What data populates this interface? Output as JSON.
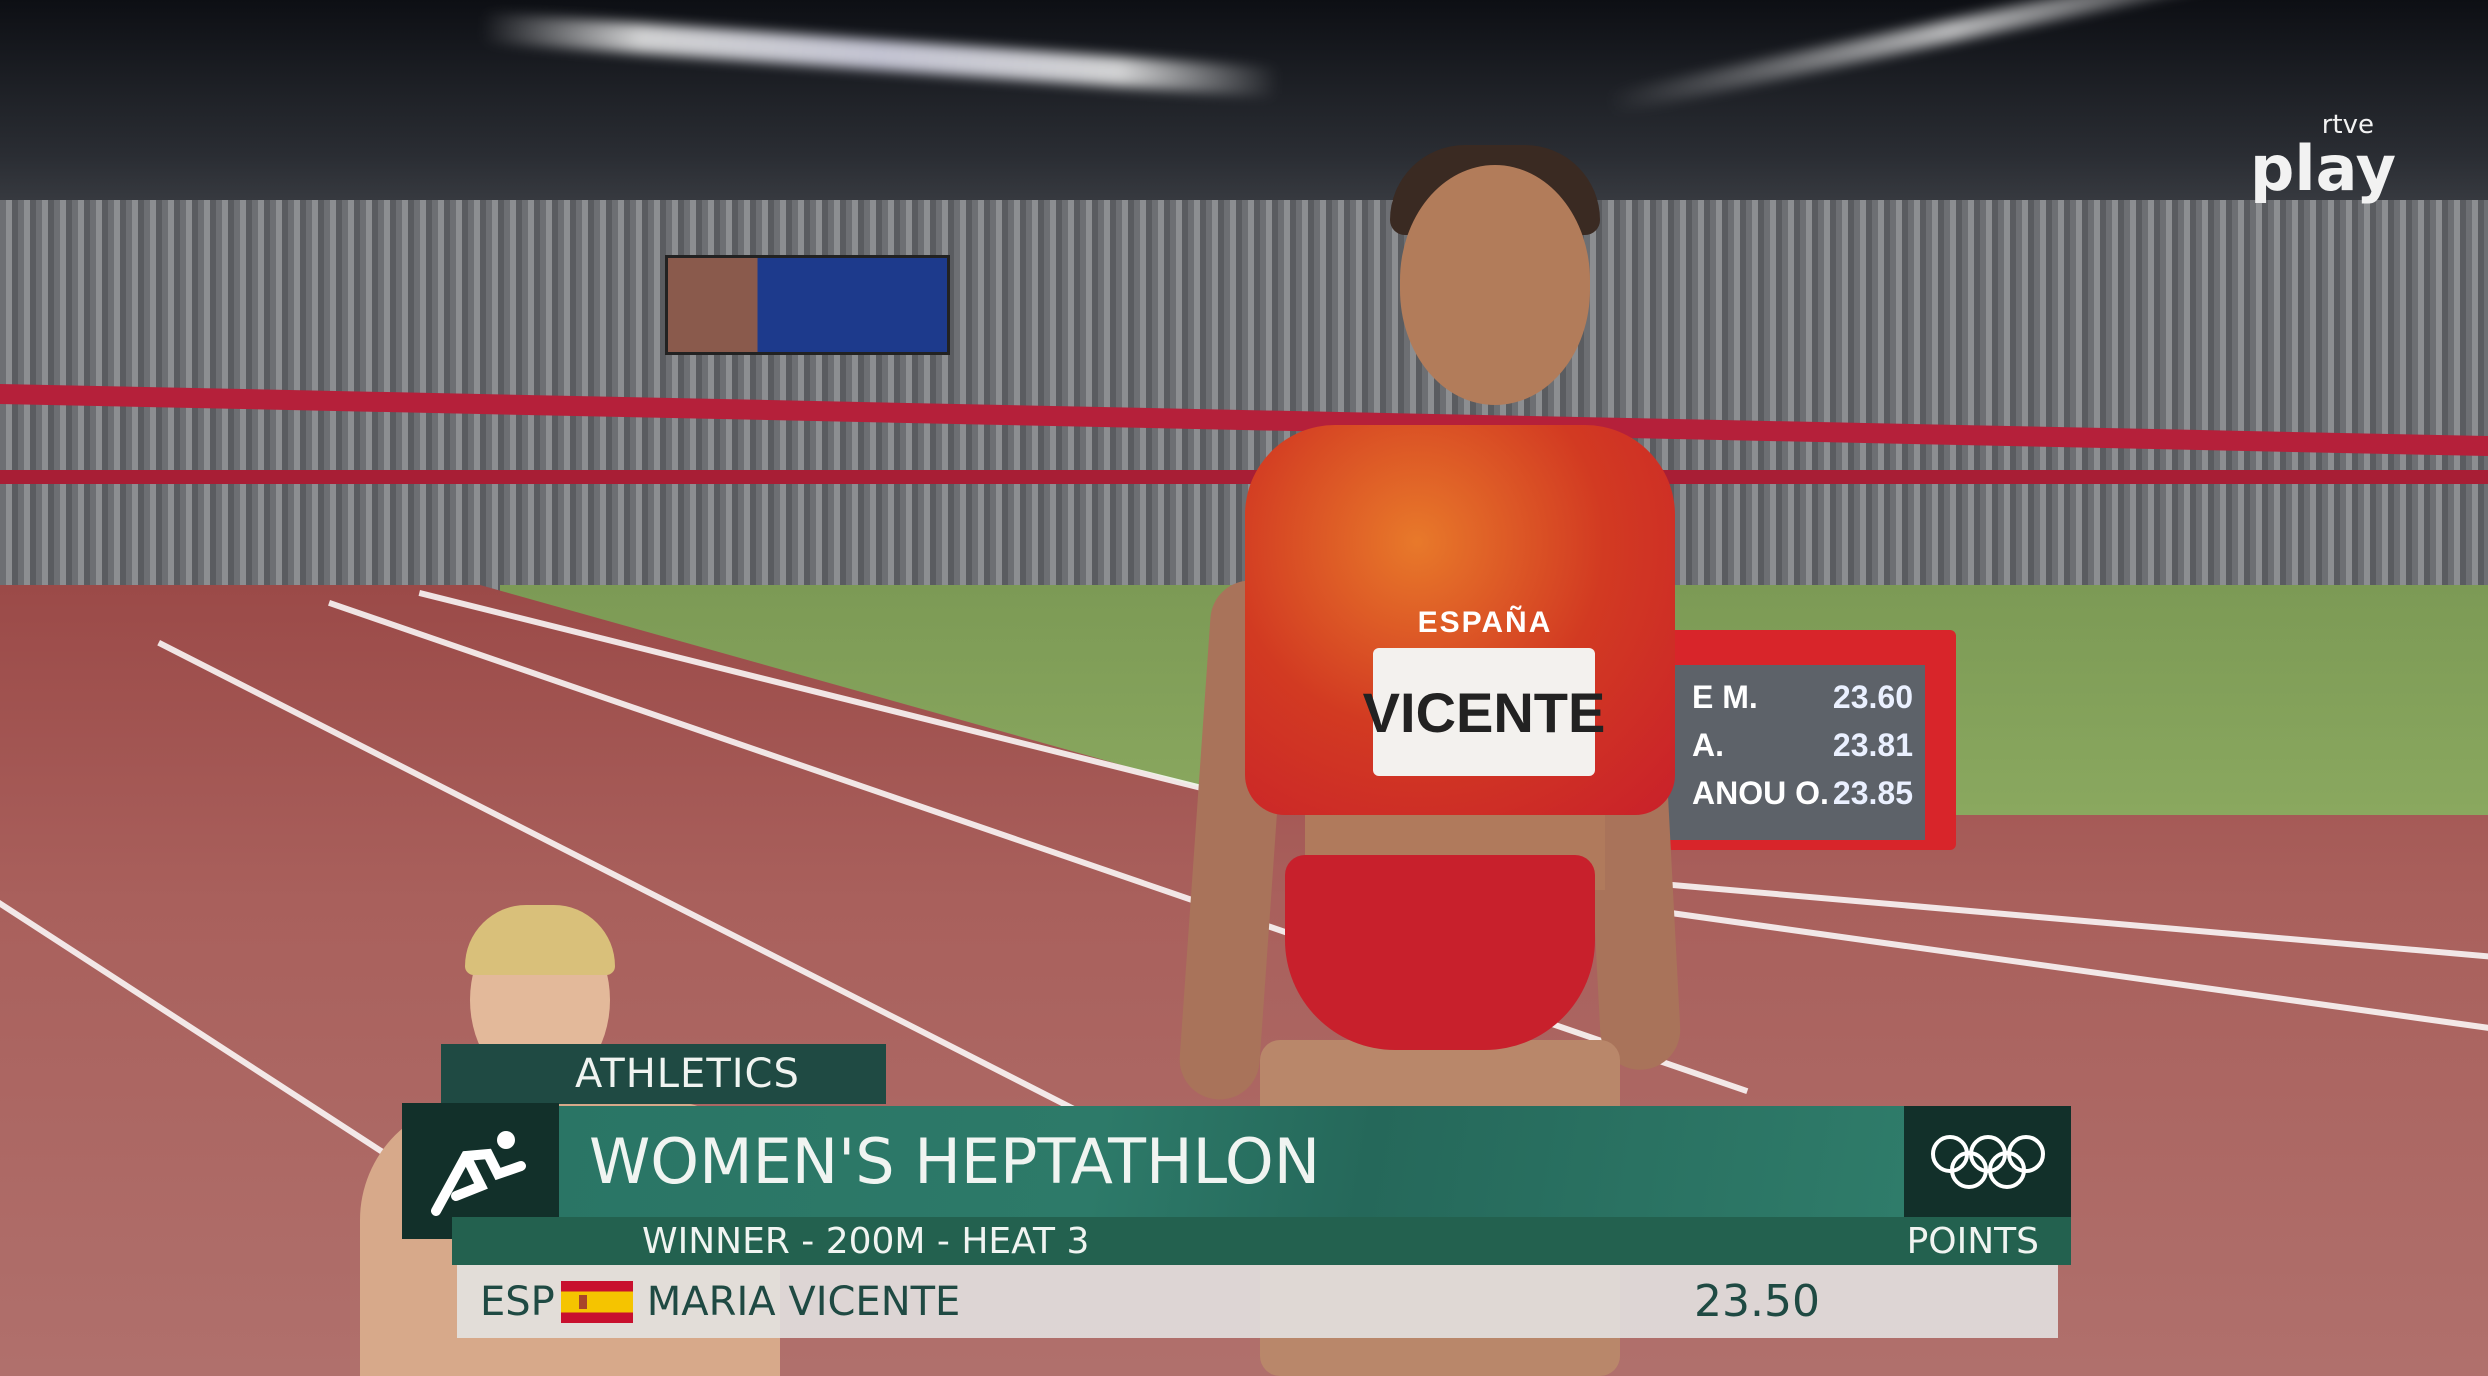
{
  "broadcaster_logo": {
    "small": "rtve",
    "large": "play"
  },
  "lower_third": {
    "sport": "ATHLETICS",
    "event": "WOMEN'S HEPTATHLON",
    "subtitle": "WINNER - 200M - HEAT 3",
    "column_label": "POINTS",
    "country_code": "ESP",
    "athlete": "MARIA VICENTE",
    "result": "23.50",
    "sport_icon": "running-athlete-icon",
    "olympic_icon": "olympic-rings-icon",
    "colors": {
      "dark_green": "#12302a",
      "green": "#2a7565",
      "light_bar": "#e4e4e2"
    }
  },
  "bib": {
    "team": "ESPAÑA",
    "name": "VICENTE"
  },
  "scoreboard": {
    "rows": [
      {
        "name": "E M.",
        "time": "23.60"
      },
      {
        "name": "A.",
        "time": "23.81"
      },
      {
        "name": "ANOU O.",
        "time": "23.85"
      }
    ]
  }
}
